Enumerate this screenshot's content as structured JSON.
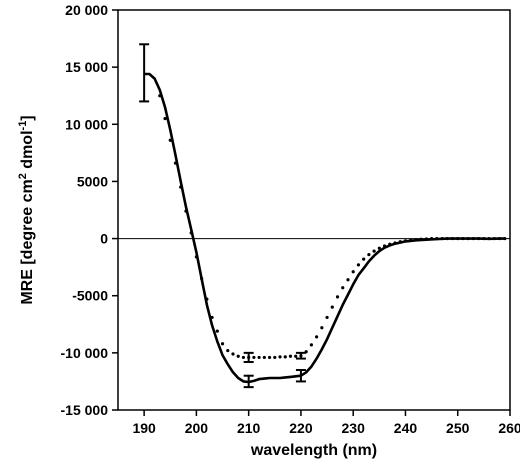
{
  "chart_data": {
    "type": "line",
    "xlabel": "wavelength (nm)",
    "ylabel": {
      "main": "MRE [degree cm",
      "sup1": "2",
      "mid": " dmol",
      "sup2": "-1",
      "end": "]"
    },
    "xlim": [
      185,
      260
    ],
    "ylim": [
      -15000,
      20000
    ],
    "x_ticks": [
      190,
      200,
      210,
      220,
      230,
      240,
      250,
      260
    ],
    "y_ticks": [
      20000,
      15000,
      10000,
      5000,
      0,
      -5000,
      -10000,
      -15000
    ],
    "y_tick_labels": [
      "20 000",
      "15 000",
      "10 000",
      "5000",
      "0",
      "-5000",
      "-10 000",
      "-15 000"
    ],
    "grid": false,
    "zero_line": true,
    "series": [
      {
        "style": "solid",
        "color": "#000000",
        "points": [
          [
            190,
            14400
          ],
          [
            191,
            14400
          ],
          [
            192,
            14000
          ],
          [
            193,
            13000
          ],
          [
            194,
            11500
          ],
          [
            195,
            9500
          ],
          [
            196,
            7300
          ],
          [
            197,
            5000
          ],
          [
            198,
            2800
          ],
          [
            199,
            800
          ],
          [
            200,
            -1200
          ],
          [
            201,
            -3500
          ],
          [
            202,
            -5800
          ],
          [
            203,
            -7600
          ],
          [
            204,
            -9000
          ],
          [
            205,
            -10200
          ],
          [
            206,
            -11000
          ],
          [
            207,
            -11700
          ],
          [
            208,
            -12200
          ],
          [
            209,
            -12500
          ],
          [
            210,
            -12550
          ],
          [
            211,
            -12450
          ],
          [
            212,
            -12300
          ],
          [
            213,
            -12250
          ],
          [
            214,
            -12200
          ],
          [
            215,
            -12200
          ],
          [
            216,
            -12200
          ],
          [
            217,
            -12150
          ],
          [
            218,
            -12100
          ],
          [
            219,
            -12050
          ],
          [
            220,
            -12000
          ],
          [
            221,
            -11700
          ],
          [
            222,
            -11200
          ],
          [
            223,
            -10500
          ],
          [
            224,
            -9700
          ],
          [
            225,
            -8800
          ],
          [
            226,
            -7800
          ],
          [
            227,
            -6800
          ],
          [
            228,
            -5800
          ],
          [
            229,
            -4900
          ],
          [
            230,
            -4000
          ],
          [
            231,
            -3200
          ],
          [
            232,
            -2600
          ],
          [
            233,
            -2000
          ],
          [
            234,
            -1500
          ],
          [
            235,
            -1100
          ],
          [
            236,
            -800
          ],
          [
            237,
            -600
          ],
          [
            238,
            -450
          ],
          [
            239,
            -350
          ],
          [
            240,
            -250
          ],
          [
            242,
            -150
          ],
          [
            244,
            -100
          ],
          [
            246,
            -50
          ],
          [
            248,
            0
          ],
          [
            250,
            0
          ],
          [
            252,
            0
          ],
          [
            254,
            0
          ],
          [
            256,
            -20
          ],
          [
            258,
            0
          ],
          [
            259,
            0
          ]
        ],
        "error_bars": [
          {
            "x": 190,
            "y": 14400,
            "low": 12000,
            "high": 17000
          },
          {
            "x": 210,
            "y": -12550,
            "low": -13000,
            "high": -12000
          },
          {
            "x": 220,
            "y": -12000,
            "low": -12500,
            "high": -11500
          }
        ]
      },
      {
        "style": "dotted",
        "color": "#000000",
        "points": [
          [
            193,
            12500
          ],
          [
            194,
            10500
          ],
          [
            195,
            8600
          ],
          [
            196,
            6600
          ],
          [
            197,
            4500
          ],
          [
            198,
            2400
          ],
          [
            199,
            500
          ],
          [
            200,
            -1600
          ],
          [
            201,
            -3500
          ],
          [
            202,
            -5300
          ],
          [
            203,
            -6900
          ],
          [
            204,
            -8100
          ],
          [
            205,
            -9200
          ],
          [
            206,
            -9800
          ],
          [
            207,
            -10100
          ],
          [
            208,
            -10300
          ],
          [
            209,
            -10400
          ],
          [
            210,
            -10400
          ],
          [
            211,
            -10400
          ],
          [
            212,
            -10400
          ],
          [
            213,
            -10400
          ],
          [
            214,
            -10400
          ],
          [
            215,
            -10400
          ],
          [
            216,
            -10350
          ],
          [
            217,
            -10350
          ],
          [
            218,
            -10300
          ],
          [
            219,
            -10300
          ],
          [
            220,
            -10250
          ],
          [
            221,
            -9900
          ],
          [
            222,
            -9300
          ],
          [
            223,
            -8600
          ],
          [
            224,
            -7800
          ],
          [
            225,
            -6900
          ],
          [
            226,
            -6000
          ],
          [
            227,
            -5100
          ],
          [
            228,
            -4300
          ],
          [
            229,
            -3600
          ],
          [
            230,
            -2900
          ],
          [
            231,
            -2300
          ],
          [
            232,
            -1800
          ],
          [
            233,
            -1400
          ],
          [
            234,
            -1100
          ],
          [
            235,
            -850
          ],
          [
            236,
            -650
          ],
          [
            237,
            -500
          ],
          [
            238,
            -380
          ],
          [
            239,
            -280
          ],
          [
            240,
            -200
          ],
          [
            241,
            -140
          ],
          [
            242,
            -100
          ],
          [
            243,
            -60
          ],
          [
            244,
            -30
          ],
          [
            245,
            0
          ],
          [
            246,
            0
          ],
          [
            247,
            0
          ],
          [
            248,
            0
          ],
          [
            249,
            0
          ],
          [
            250,
            0
          ],
          [
            251,
            0
          ],
          [
            252,
            0
          ],
          [
            253,
            0
          ],
          [
            254,
            0
          ],
          [
            255,
            0
          ],
          [
            256,
            0
          ],
          [
            257,
            0
          ],
          [
            258,
            0
          ],
          [
            259,
            0
          ]
        ],
        "error_bars": [
          {
            "x": 210,
            "y": -10400,
            "low": -10800,
            "high": -10000
          },
          {
            "x": 220,
            "y": -10250,
            "low": -10500,
            "high": -10000
          }
        ]
      }
    ]
  }
}
